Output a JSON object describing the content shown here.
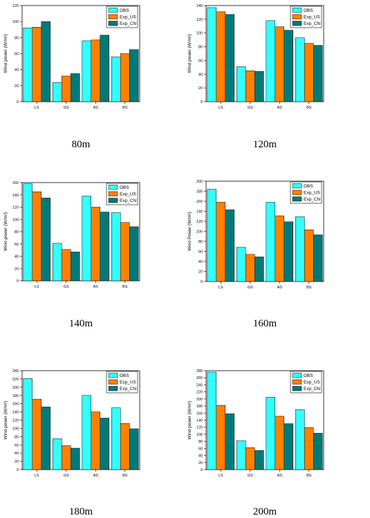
{
  "figure": {
    "legend_position": "top-right",
    "series_colors": [
      "#33ffff",
      "#ff8000",
      "#007979"
    ],
    "bar_stroke": "#000000"
  },
  "chart_data": [
    {
      "type": "bar",
      "caption": "80m",
      "categories": [
        "LS",
        "GS",
        "AS",
        "BS"
      ],
      "ylabel": "Wind power (W/m²)",
      "ylim": [
        0,
        120
      ],
      "yticks": [
        0,
        20,
        40,
        60,
        80,
        100,
        120
      ],
      "legend": "top-right",
      "series": [
        {
          "name": "OBS",
          "values": [
            92,
            24,
            76,
            56
          ]
        },
        {
          "name": "Exp_US",
          "values": [
            93,
            32,
            77,
            60
          ]
        },
        {
          "name": "Exp_CN",
          "values": [
            100,
            35,
            83,
            65
          ]
        }
      ]
    },
    {
      "type": "bar",
      "caption": "120m",
      "categories": [
        "LS",
        "GS",
        "AS",
        "BS"
      ],
      "ylabel": "Wind power (W/m²)",
      "ylim": [
        0,
        140
      ],
      "yticks": [
        0,
        20,
        40,
        60,
        80,
        100,
        120,
        140
      ],
      "legend": "top-right",
      "series": [
        {
          "name": "OBS",
          "values": [
            137,
            51,
            118,
            93
          ]
        },
        {
          "name": "Exp_US",
          "values": [
            131,
            45,
            109,
            85
          ]
        },
        {
          "name": "Exp_CN",
          "values": [
            127,
            44,
            104,
            82
          ]
        }
      ]
    },
    {
      "type": "bar",
      "caption": "140m",
      "categories": [
        "LS",
        "GS",
        "AS",
        "BS"
      ],
      "ylabel": "Wind power (W/m²)",
      "ylim": [
        0,
        160
      ],
      "yticks": [
        0,
        20,
        40,
        60,
        80,
        100,
        120,
        140,
        160
      ],
      "legend": "top-right",
      "series": [
        {
          "name": "OBS",
          "values": [
            158,
            61,
            138,
            111
          ]
        },
        {
          "name": "Exp_US",
          "values": [
            145,
            51,
            120,
            95
          ]
        },
        {
          "name": "Exp_CN",
          "values": [
            135,
            47,
            112,
            88
          ]
        }
      ]
    },
    {
      "type": "bar",
      "caption": "160m",
      "categories": [
        "LS",
        "GS",
        "AS",
        "BS"
      ],
      "ylabel": "Wind Power (W/m²)",
      "ylim": [
        0,
        200
      ],
      "yticks": [
        0,
        20,
        40,
        60,
        80,
        100,
        120,
        140,
        160,
        180,
        200
      ],
      "legend": "top-right",
      "series": [
        {
          "name": "OBS",
          "values": [
            184,
            68,
            158,
            129
          ]
        },
        {
          "name": "Exp_US",
          "values": [
            158,
            54,
            131,
            103
          ]
        },
        {
          "name": "Exp_CN",
          "values": [
            143,
            49,
            119,
            93
          ]
        }
      ]
    },
    {
      "type": "bar",
      "caption": "180m",
      "categories": [
        "LS",
        "GS",
        "AS",
        "BS"
      ],
      "ylabel": "Wind power (W/m²)",
      "ylim": [
        0,
        240
      ],
      "yticks": [
        0,
        20,
        40,
        60,
        80,
        100,
        120,
        140,
        160,
        180,
        200,
        220,
        240
      ],
      "legend": "top-right",
      "series": [
        {
          "name": "OBS",
          "values": [
            221,
            75,
            180,
            150
          ]
        },
        {
          "name": "Exp_US",
          "values": [
            171,
            58,
            140,
            112
          ]
        },
        {
          "name": "Exp_CN",
          "values": [
            152,
            52,
            125,
            99
          ]
        }
      ]
    },
    {
      "type": "bar",
      "caption": "200m",
      "categories": [
        "LS",
        "GS",
        "AS",
        "BS"
      ],
      "ylabel": "Wind power (W/m²)",
      "ylim": [
        0,
        280
      ],
      "yticks": [
        0,
        20,
        40,
        60,
        80,
        100,
        120,
        140,
        160,
        180,
        200,
        220,
        240,
        260,
        280
      ],
      "legend": "top-right",
      "series": [
        {
          "name": "OBS",
          "values": [
            276,
            82,
            205,
            170
          ]
        },
        {
          "name": "Exp_US",
          "values": [
            182,
            62,
            151,
            119
          ]
        },
        {
          "name": "Exp_CN",
          "values": [
            158,
            54,
            130,
            103
          ]
        }
      ]
    }
  ]
}
